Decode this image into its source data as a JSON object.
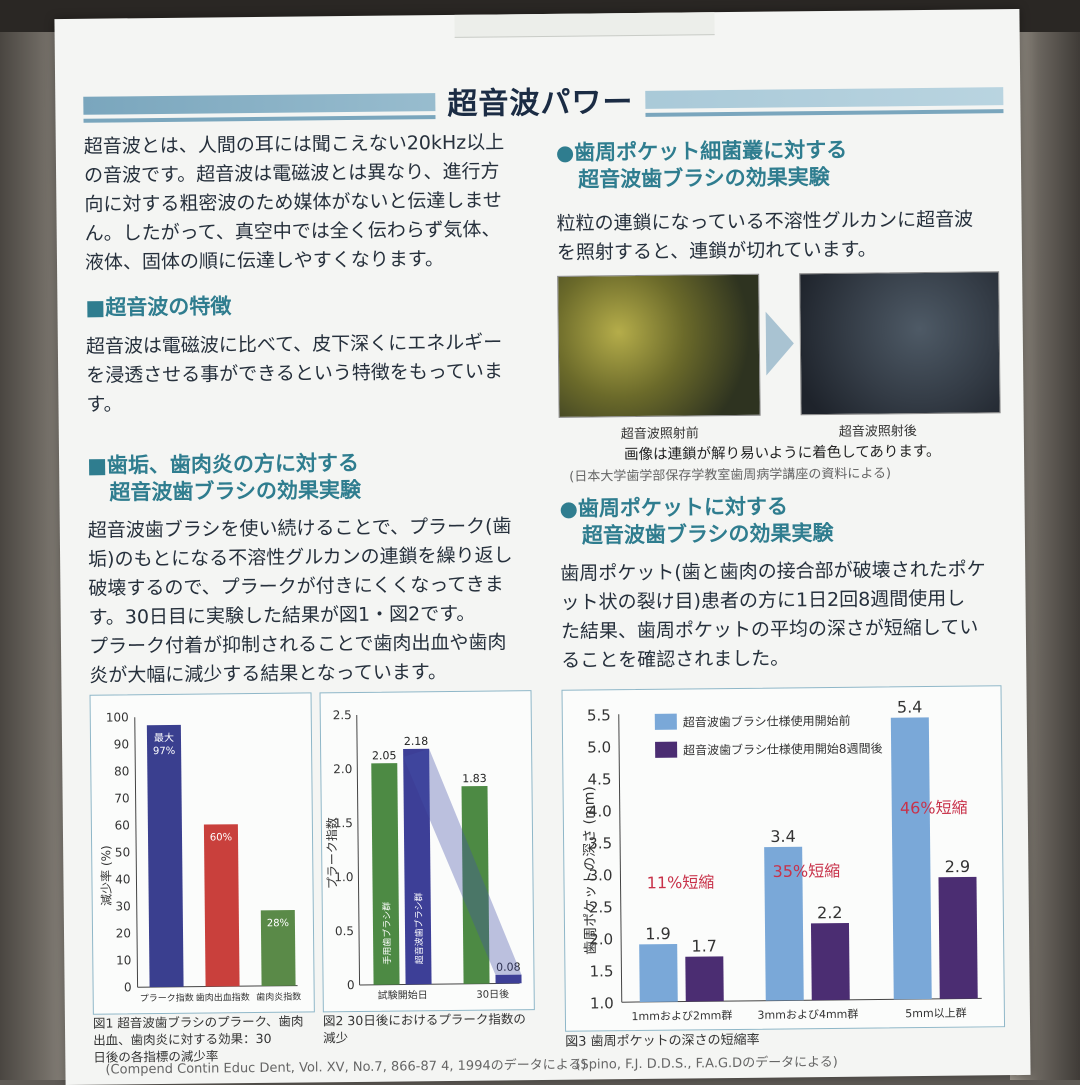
{
  "title": "超音波パワー",
  "intro": [
    "超音波とは、人間の耳には聞こえない20kHz以上",
    "の音波です。超音波は電磁波とは異なり、進行方",
    "向に対する粗密波のため媒体がないと伝達しませ",
    "ん。したがって、真空中では全く伝わらず気体、",
    "液体、固体の順に伝達しやすくなります。"
  ],
  "feature": {
    "heading": "■超音波の特徴",
    "body": [
      "超音波は電磁波に比べて、皮下深くにエネルギー",
      "を浸透させる事ができるという特徴をもっていま",
      "す。"
    ]
  },
  "gum": {
    "heading": [
      "■歯垢、歯肉炎の方に対する",
      "超音波歯ブラシの効果実験"
    ],
    "body": [
      "超音波歯ブラシを使い続けることで、プラーク(歯",
      "垢)のもとになる不溶性グルカンの連鎖を繰り返し",
      "破壊するので、プラークが付きにくくなってきま",
      "す。30日目に実験した結果が図1・図2です。",
      "プラーク付着が抑制されることで歯肉出血や歯肉",
      "炎が大幅に減少する結果となっています。"
    ]
  },
  "bacteria": {
    "heading": [
      "●歯周ポケット細菌叢に対する",
      "超音波歯ブラシの効果実験"
    ],
    "body": [
      "粒粒の連鎖になっている不溶性グルカンに超音波",
      "を照射すると、連鎖が切れています。"
    ],
    "before_label": "超音波照射前",
    "after_label": "超音波照射後",
    "note": "画像は連鎖が解り易いように着色してあります。",
    "source": "(日本大学歯学部保存学教室歯周病学講座の資料による)"
  },
  "pocket": {
    "heading": [
      "●歯周ポケットに対する",
      "超音波歯ブラシの効果実験"
    ],
    "body": [
      "歯周ポケット(歯と歯肉の接合部が破壊されたポケ",
      "ット状の裂け目)患者の方に1日2回8週間使用し",
      "た結果、歯周ポケットの平均の深さが短縮してい",
      "ることを確認されました。"
    ]
  },
  "chart_data": [
    {
      "type": "bar",
      "ylabel": "減少率 (%)",
      "ylim": [
        0,
        100
      ],
      "yticks": [
        "0",
        "10",
        "20",
        "30",
        "40",
        "50",
        "60",
        "70",
        "80",
        "90",
        "100"
      ],
      "categories": [
        "プラーク指数",
        "歯肉出血指数",
        "歯肉炎指数"
      ],
      "values": [
        97,
        60,
        28
      ],
      "labels": [
        "最大\n97%",
        "60%",
        "28%"
      ],
      "colors": [
        "#3a3f8f",
        "#c9403c",
        "#5a8a48"
      ],
      "caption": [
        "図1 超音波歯ブラシのプラーク、歯肉",
        "出血、歯肉炎に対する効果：30",
        "日後の各指標の減少率"
      ]
    },
    {
      "type": "bar",
      "ylabel": "プラーク指数",
      "ylim": [
        0,
        2.5
      ],
      "yticks": [
        "0",
        "0.5",
        "1.0",
        "1.5",
        "2.0",
        "2.5"
      ],
      "categories": [
        "試験開始日",
        "30日後"
      ],
      "series": [
        {
          "name": "手用歯ブラシ群",
          "values": [
            2.05,
            1.83
          ]
        },
        {
          "name": "超音波歯ブラシ群",
          "values": [
            2.18,
            0.08
          ]
        }
      ],
      "value_labels": [
        "2.05",
        "2.18",
        "1.83",
        "0.08"
      ],
      "colors": [
        "#4d8a44",
        "#3d3f97"
      ],
      "caption": [
        "図2 30日後におけるプラーク指数の",
        "減少"
      ]
    },
    {
      "type": "bar",
      "ylabel": "歯周ポケットの深さ (mm)",
      "ylim": [
        1.0,
        5.5
      ],
      "yticks": [
        "1.0",
        "1.5",
        "2.0",
        "2.5",
        "3.0",
        "3.5",
        "4.0",
        "4.5",
        "5.0",
        "5.5"
      ],
      "categories": [
        "1mmおよび2mm群",
        "3mmおよび4mm群",
        "5mm以上群"
      ],
      "series": [
        {
          "name": "超音波歯ブラシ仕様使用開始前",
          "values": [
            1.9,
            3.4,
            5.4
          ]
        },
        {
          "name": "超音波歯ブラシ仕様使用開始8週間後",
          "values": [
            1.7,
            2.2,
            2.9
          ]
        }
      ],
      "annotations": [
        "11%短縮",
        "35%短縮",
        "46%短縮"
      ],
      "colors": [
        "#7aa8d8",
        "#4b2d72",
        "#c8324a"
      ],
      "caption": "図3 歯周ポケットの深さの短縮率"
    }
  ],
  "source1": "(Compend Contin Educ Dent, Vol. XV, No.7, 866-87 4, 1994のデータによる)",
  "source3": "(Spino, F.J. D.D.S., F.A.G.Dのデータによる)"
}
